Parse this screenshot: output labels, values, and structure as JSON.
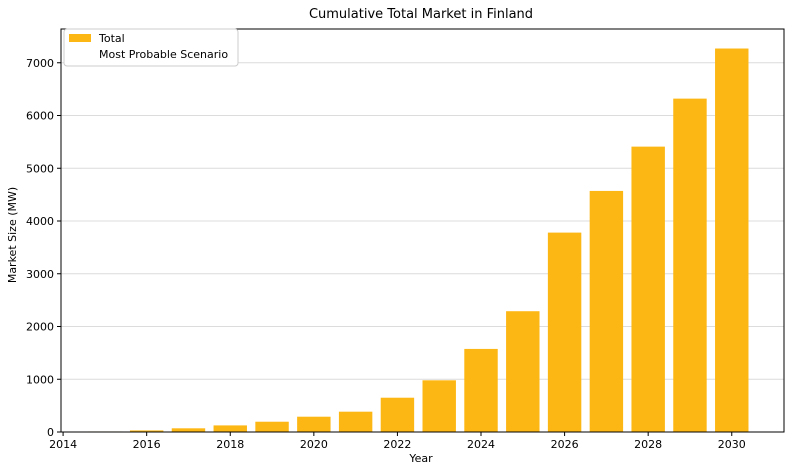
{
  "chart_data": {
    "type": "bar",
    "title": "Cumulative Total Market in Finland",
    "xlabel": "Year",
    "ylabel": "Market Size (MW)",
    "x": [
      2015,
      2016,
      2017,
      2018,
      2019,
      2020,
      2021,
      2022,
      2023,
      2024,
      2025,
      2026,
      2027,
      2028,
      2029,
      2030
    ],
    "series": [
      {
        "name": "Total",
        "color": "#fdb714",
        "values": [
          10,
          30,
          70,
          125,
          195,
          290,
          385,
          650,
          980,
          1575,
          2290,
          3780,
          4570,
          5410,
          6320,
          7270
        ]
      }
    ],
    "legend": {
      "placement": "top-left",
      "entries": [
        "Total",
        "Most Probable Scenario"
      ]
    },
    "xlim": [
      2013.95,
      2031.25
    ],
    "ylim": [
      0,
      7640
    ],
    "xticks": [
      "2014",
      "2016",
      "2018",
      "2020",
      "2022",
      "2024",
      "2026",
      "2028",
      "2030"
    ],
    "yticks": [
      "0",
      "1000",
      "2000",
      "3000",
      "4000",
      "5000",
      "6000",
      "7000"
    ],
    "grid": "y",
    "grid_color": "#dcdcdc"
  }
}
